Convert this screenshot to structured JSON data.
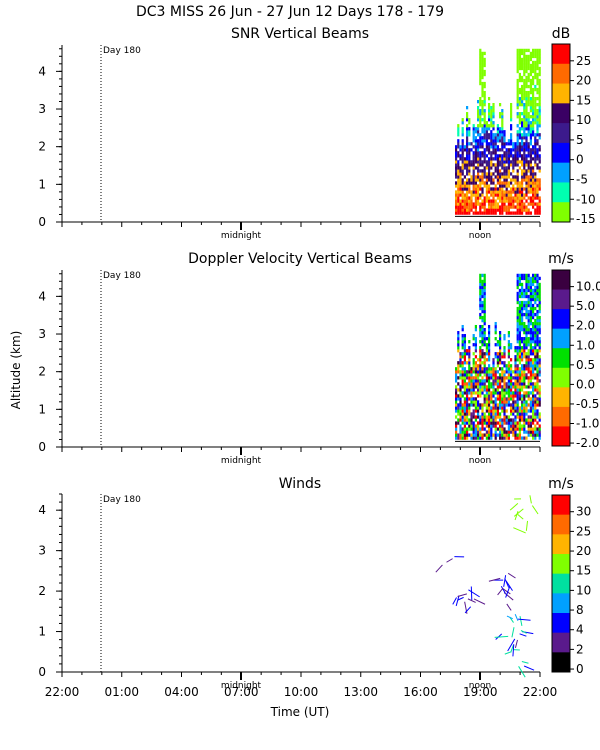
{
  "figure": {
    "title": "DC3 MISS  26 Jun - 27 Jun 12 Days 178 - 179",
    "ylabel": "Altitude (km)",
    "xlabel": "Time (UT)",
    "x_ticks": [
      "22:00",
      "01:00",
      "04:00",
      "07:00",
      "10:00",
      "13:00",
      "16:00",
      "19:00",
      "22:00"
    ],
    "day_marker_label": "Day 180",
    "midnight_label": "midnight",
    "noon_label": "noon"
  },
  "chart_data": [
    {
      "type": "heatmap",
      "title": "SNR Vertical Beams",
      "unit": "dB",
      "ylim": [
        0,
        4.7
      ],
      "y_ticks": [
        0,
        1,
        2,
        3,
        4
      ],
      "colorbar": {
        "ticks": [
          "25",
          "20",
          "15",
          "10",
          "5",
          "0",
          "-5",
          "-10",
          "-15"
        ],
        "colors": [
          "#ff0000",
          "#ff6a00",
          "#ffb400",
          "#3a0064",
          "#3c1a8c",
          "#0000ff",
          "#00a0ff",
          "#00ffb0",
          "#80ff00"
        ]
      }
    },
    {
      "type": "heatmap",
      "title": "Doppler Velocity Vertical Beams",
      "unit": "m/s",
      "ylim": [
        0,
        4.7
      ],
      "y_ticks": [
        0,
        1,
        2,
        3,
        4
      ],
      "colorbar": {
        "ticks": [
          "10.0",
          "5.0",
          "2.0",
          "1.0",
          "0.5",
          "0.0",
          "-0.5",
          "-1.0",
          "-2.0"
        ],
        "colors": [
          "#3a0040",
          "#5a1a8c",
          "#0000ff",
          "#00a0ff",
          "#00e000",
          "#80ff00",
          "#ffb400",
          "#ff6a00",
          "#ff0000"
        ]
      }
    },
    {
      "type": "scatter",
      "title": "Winds",
      "unit": "m/s",
      "ylim": [
        0,
        4.4
      ],
      "y_ticks": [
        0,
        1,
        2,
        3,
        4
      ],
      "colorbar": {
        "ticks": [
          "30",
          "25",
          "20",
          "15",
          "10",
          "8",
          "4",
          "2",
          "0"
        ],
        "colors": [
          "#ff0000",
          "#ff6a00",
          "#ffb400",
          "#80ff00",
          "#00e0a0",
          "#00a0ff",
          "#0000ff",
          "#5a1a8c",
          "#000000"
        ]
      }
    }
  ]
}
